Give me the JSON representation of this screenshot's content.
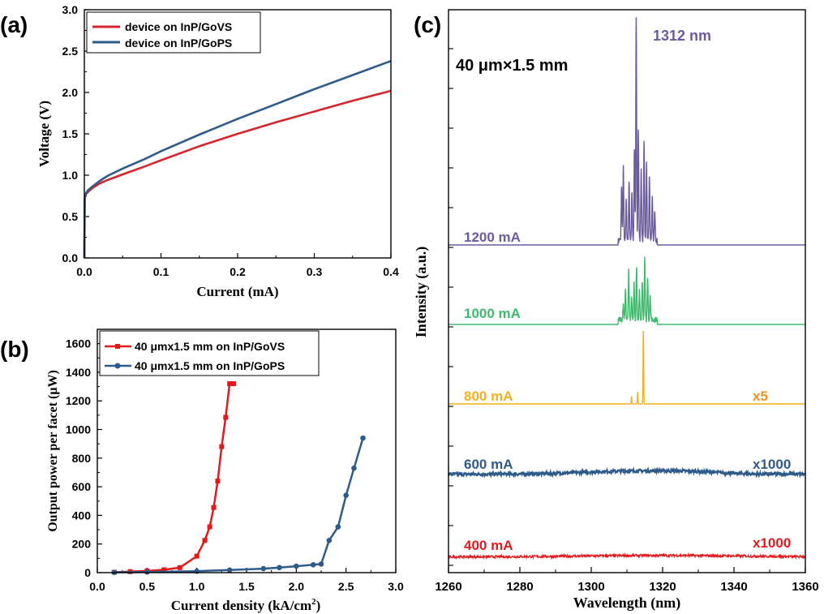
{
  "chart_data": [
    {
      "panel_label": "(a)",
      "type": "line",
      "xlabel": "Current (mA)",
      "ylabel": "Voltage (V)",
      "xlim": [
        0,
        0.4
      ],
      "ylim": [
        0,
        3.0
      ],
      "xticks": [
        "0.0",
        "0.1",
        "0.2",
        "0.3",
        "0.4"
      ],
      "yticks": [
        "0.0",
        "0.5",
        "1.0",
        "1.5",
        "2.0",
        "2.5",
        "3.0"
      ],
      "legend_position": "top-left",
      "series": [
        {
          "name": "device on InP/GoVS",
          "color": "#d6262b",
          "x": [
            0,
            0.0005,
            0.001,
            0.002,
            0.005,
            0.01,
            0.02,
            0.03,
            0.05,
            0.08,
            0.1,
            0.15,
            0.2,
            0.25,
            0.3,
            0.35,
            0.4
          ],
          "y": [
            0,
            0.7,
            0.74,
            0.77,
            0.8,
            0.84,
            0.9,
            0.94,
            1.01,
            1.11,
            1.18,
            1.35,
            1.5,
            1.64,
            1.77,
            1.9,
            2.02
          ]
        },
        {
          "name": "device on InP/GoPS",
          "color": "#2e5b8a",
          "x": [
            0,
            0.0005,
            0.001,
            0.002,
            0.005,
            0.01,
            0.02,
            0.03,
            0.05,
            0.08,
            0.1,
            0.15,
            0.2,
            0.25,
            0.3,
            0.35,
            0.4
          ],
          "y": [
            0,
            0.7,
            0.74,
            0.78,
            0.82,
            0.86,
            0.93,
            0.99,
            1.08,
            1.2,
            1.29,
            1.49,
            1.68,
            1.86,
            2.04,
            2.21,
            2.38
          ]
        }
      ]
    },
    {
      "panel_label": "(b)",
      "type": "line",
      "xlabel": "Current density (kA/cm",
      "xlabel_sup": "2",
      "xlabel_end": ")",
      "ylabel_text": "Output power per facet (",
      "ylabel_unit": "μW",
      "ylabel_end": ")",
      "xlim": [
        0,
        3.0
      ],
      "ylim": [
        0,
        1700
      ],
      "xticks": [
        "0.0",
        "0.5",
        "1.0",
        "1.5",
        "2.0",
        "2.5",
        "3.0"
      ],
      "yticks": [
        "0",
        "200",
        "400",
        "600",
        "800",
        "1000",
        "1200",
        "1400",
        "1600"
      ],
      "legend_position": "top-left",
      "series": [
        {
          "name": "40 μmx1.5 mm on InP/GoVS",
          "color": "#e31a1c",
          "marker": "square",
          "x": [
            0.17,
            0.33,
            0.5,
            0.67,
            0.83,
            1.0,
            1.08,
            1.13,
            1.17,
            1.21,
            1.25,
            1.29,
            1.33,
            1.37
          ],
          "y": [
            3,
            7,
            12,
            20,
            35,
            115,
            225,
            320,
            455,
            640,
            880,
            1085,
            1320,
            1320
          ]
        },
        {
          "name": "40 μmx1.5 mm on InP/GoPS",
          "color": "#2e5b8a",
          "marker": "circle",
          "x": [
            0.17,
            0.5,
            1.0,
            1.33,
            1.67,
            1.83,
            2.0,
            2.17,
            2.25,
            2.33,
            2.42,
            2.5,
            2.58,
            2.67
          ],
          "y": [
            2,
            4,
            10,
            18,
            28,
            35,
            45,
            55,
            60,
            225,
            320,
            540,
            730,
            940
          ]
        }
      ]
    },
    {
      "panel_label": "(c)",
      "type": "line",
      "xlabel": "Wavelength (nm)",
      "ylabel": "Intensity (a.u.)",
      "xlim": [
        1260,
        1360
      ],
      "xticks": [
        "1260",
        "1280",
        "1300",
        "1320",
        "1340",
        "1360"
      ],
      "annotation_size": "40 μm×1.5 mm",
      "annotation_peak": "1312 nm",
      "traces": [
        {
          "label": "1200 mA",
          "color": "#6b5b9e",
          "scale": "",
          "kind": "multimode",
          "peaks": [
            [
              1308.5,
              0.22
            ],
            [
              1309.0,
              0.3
            ],
            [
              1309.8,
              0.17
            ],
            [
              1310.6,
              0.24
            ],
            [
              1311.4,
              0.2
            ],
            [
              1312.1,
              0.38
            ],
            [
              1312.6,
              0.92
            ],
            [
              1313.2,
              0.46
            ],
            [
              1314.0,
              0.3
            ],
            [
              1314.8,
              0.4
            ],
            [
              1315.5,
              0.32
            ],
            [
              1316.3,
              0.26
            ],
            [
              1317.1,
              0.18
            ],
            [
              1317.8,
              0.12
            ]
          ]
        },
        {
          "label": "1000 mA",
          "color": "#3dbb6c",
          "scale": "",
          "kind": "multimode",
          "peaks": [
            [
              1309.0,
              0.07
            ],
            [
              1309.6,
              0.12
            ],
            [
              1310.5,
              0.2
            ],
            [
              1311.3,
              0.09
            ],
            [
              1312.0,
              0.15
            ],
            [
              1312.7,
              0.22
            ],
            [
              1313.5,
              0.12
            ],
            [
              1314.3,
              0.16
            ],
            [
              1315.0,
              0.25
            ],
            [
              1315.8,
              0.18
            ],
            [
              1316.5,
              0.1
            ]
          ]
        },
        {
          "label": "800 mA",
          "color": "#f2b01e",
          "scale": "x5",
          "scale_color": "#f2931e",
          "kind": "single",
          "peaks": [
            [
              1311.3,
              0.03
            ],
            [
              1313.0,
              0.05
            ],
            [
              1314.6,
              0.3
            ]
          ]
        },
        {
          "label": "600 mA",
          "color": "#2e5b8a",
          "scale": "x1000",
          "kind": "ase"
        },
        {
          "label": "400 mA",
          "color": "#e31a1c",
          "scale": "x1000",
          "kind": "noise"
        }
      ]
    }
  ]
}
